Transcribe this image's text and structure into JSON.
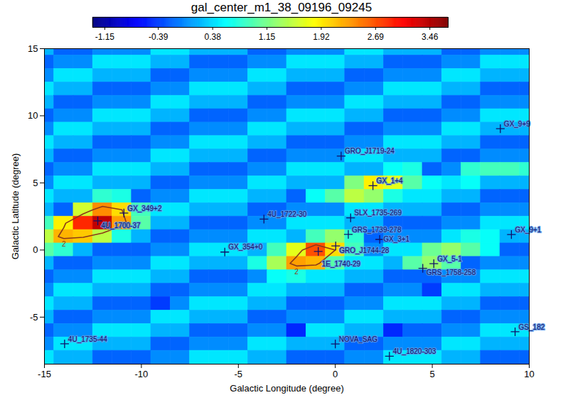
{
  "chart_data": {
    "type": "heatmap",
    "title": "gal_center_m1_38_09196_09245",
    "x_label": "Galactic Longitude (degree)",
    "y_label": "Galactic Latitude (degree)",
    "xlim": [
      -15,
      10
    ],
    "xticks": [
      -15,
      -10,
      -5,
      0,
      5,
      10
    ],
    "ylim": [
      -8.5,
      15
    ],
    "yticks": [
      -5,
      0,
      5,
      10,
      15
    ],
    "colorbar": {
      "lim": [
        -1.32,
        3.72
      ],
      "ticks": [
        -1.15,
        -0.39,
        0.38,
        1.15,
        1.92,
        2.69,
        3.46
      ]
    },
    "contour_levels": [
      2
    ],
    "cells": {
      "lon": [
        -15,
        -14,
        -13,
        -12,
        -11,
        -10,
        -9,
        -8,
        -7,
        -6,
        -5,
        -4,
        -3,
        -2,
        -1,
        0,
        1,
        2,
        3,
        4,
        5,
        6,
        7,
        8,
        9,
        10
      ],
      "lat": [
        15,
        14,
        13,
        12,
        11,
        10,
        9,
        8,
        7,
        6,
        5,
        4,
        3,
        2,
        1,
        0,
        -1,
        -2,
        -3,
        -4,
        -5,
        -6,
        -7,
        -8
      ],
      "values": [
        [
          0.2,
          -0.2,
          -0.2,
          0,
          0,
          0,
          0.45,
          0.45,
          0.2,
          0.2,
          0.2,
          -0.2,
          -0.2,
          0,
          0,
          0,
          0.45,
          0.45,
          0.2,
          0.2,
          0.2,
          -0.2,
          -0.2,
          0,
          0,
          0
        ],
        [
          -0.2,
          0,
          0,
          0.45,
          0.45,
          0.45,
          0.2,
          0.2,
          -0.2,
          -0.2,
          -0.2,
          0,
          0,
          0.45,
          0.45,
          0.45,
          0.2,
          0.2,
          -0.2,
          -0.2,
          -0.2,
          0,
          0,
          0.45,
          0.45,
          0.45
        ],
        [
          0,
          0.45,
          0.45,
          0.2,
          0.2,
          0.2,
          -0.2,
          -0.2,
          0,
          0,
          0,
          0.45,
          0.45,
          0.2,
          0.2,
          0.2,
          -0.2,
          -0.2,
          0,
          0,
          0,
          0.45,
          0.45,
          0.2,
          0.2,
          0.2
        ],
        [
          0.45,
          0.2,
          0.2,
          -0.2,
          -0.2,
          -0.2,
          0,
          0,
          0.45,
          0.45,
          0.45,
          0.2,
          0.2,
          -0.2,
          -0.2,
          -0.2,
          0,
          0,
          0.45,
          0.45,
          0.45,
          0.2,
          0.2,
          -0.2,
          -0.2,
          -0.2
        ],
        [
          0.2,
          -0.2,
          -0.2,
          0,
          0,
          0,
          0.45,
          0.45,
          0.2,
          0.2,
          0.2,
          -0.2,
          -0.2,
          0,
          0,
          0,
          0.45,
          0.45,
          0.2,
          0.2,
          0.2,
          -0.2,
          -0.2,
          0,
          0,
          0
        ],
        [
          -0.2,
          0,
          0,
          0.45,
          0.45,
          0.45,
          0.2,
          0.2,
          -0.2,
          -0.2,
          -0.2,
          0,
          0,
          0.45,
          0.45,
          0.45,
          0.2,
          0.2,
          -0.2,
          -0.2,
          -0.2,
          0,
          0,
          0.45,
          0.45,
          0.45
        ],
        [
          0,
          0.45,
          0.45,
          0.2,
          0.2,
          0.2,
          -0.2,
          -0.2,
          0,
          0,
          0,
          0.45,
          0.45,
          0.2,
          0.2,
          0.2,
          -0.2,
          -0.2,
          0,
          0,
          0,
          0.45,
          0.45,
          0.2,
          0.2,
          0.2
        ],
        [
          0.45,
          0.2,
          0.2,
          -0.2,
          -0.2,
          -0.2,
          0,
          0,
          0.45,
          0.45,
          0.45,
          0.2,
          0.2,
          -0.2,
          -0.2,
          -0.2,
          0,
          0,
          0.45,
          0.45,
          0.45,
          0.2,
          0.2,
          -0.2,
          -0.2,
          -0.2
        ],
        [
          0.2,
          -0.2,
          -0.2,
          0,
          0,
          0,
          0.45,
          0.45,
          0.2,
          0.2,
          0.2,
          -0.2,
          -0.2,
          0,
          0,
          0,
          0.45,
          0.45,
          0.2,
          0.2,
          0.2,
          -0.2,
          -0.2,
          0,
          0,
          0
        ],
        [
          -0.2,
          0,
          0,
          0.45,
          0.45,
          0.45,
          0.2,
          0.2,
          -0.2,
          -0.2,
          -0.2,
          0,
          0,
          0.45,
          0.45,
          0.45,
          0.2,
          0.2,
          0.6,
          0.7,
          -0.2,
          0,
          0.8,
          0.9,
          0.9,
          0.8
        ],
        [
          0,
          0.45,
          0.45,
          0.2,
          0.2,
          0.2,
          -0.2,
          -0.2,
          0,
          0,
          0,
          0.45,
          0.45,
          0.2,
          0.2,
          0.2,
          1.2,
          1.9,
          1.7,
          1.0,
          0.6,
          0.45,
          0.6,
          0.2,
          0.2,
          0.2
        ],
        [
          0.45,
          0.2,
          0.2,
          0.8,
          0.7,
          -0.2,
          0,
          0,
          0.45,
          0.45,
          0.45,
          0.2,
          0.2,
          -0.2,
          0.6,
          1.0,
          1.5,
          1.3,
          0.7,
          0.45,
          0.45,
          0.2,
          0.2,
          -0.2,
          -0.2,
          -0.2
        ],
        [
          0.2,
          -0.2,
          1.6,
          2.4,
          2.0,
          0.9,
          0.45,
          0.45,
          0.2,
          0.2,
          0.2,
          -0.2,
          -0.2,
          0,
          0,
          0,
          0.45,
          0.45,
          0.2,
          0.2,
          0.2,
          -0.2,
          -0.2,
          0,
          0,
          0
        ],
        [
          0.9,
          1.9,
          2.9,
          3.4,
          2.3,
          1.0,
          0.2,
          0.2,
          -0.2,
          -0.2,
          -0.2,
          0,
          0,
          0.45,
          0.45,
          0.45,
          0.2,
          0.2,
          -0.2,
          -0.2,
          -0.2,
          0,
          0,
          0.45,
          0.45,
          0.45
        ],
        [
          1.5,
          2.2,
          2.1,
          1.5,
          0.7,
          0.2,
          -0.2,
          -0.2,
          0,
          0,
          0,
          0.45,
          0.45,
          0.2,
          0.9,
          1.3,
          0.8,
          -0.2,
          0,
          0,
          0,
          0.45,
          0.7,
          0.6,
          0.2,
          0.2
        ],
        [
          1.0,
          0.8,
          0.2,
          -0.2,
          -0.2,
          -0.2,
          0,
          0,
          0.45,
          0.45,
          0.45,
          0.2,
          0.9,
          1.7,
          2.7,
          2.0,
          0.9,
          0,
          0.45,
          0.45,
          1.1,
          1.3,
          1.0,
          0.6,
          -0.2,
          -0.2
        ],
        [
          0.2,
          -0.2,
          -0.2,
          0,
          0,
          0,
          0.45,
          0.45,
          0.2,
          0.2,
          0.2,
          0.7,
          1.4,
          2.3,
          2.2,
          1.0,
          0.45,
          0.45,
          0.2,
          1.0,
          1.3,
          1.0,
          -0.2,
          0,
          0,
          0
        ],
        [
          -0.2,
          0,
          0,
          0.45,
          0.45,
          0.45,
          0.2,
          0.2,
          -0.2,
          -0.2,
          -0.2,
          0,
          0.6,
          0.7,
          0.45,
          0.45,
          0.2,
          0.2,
          -0.2,
          -0.2,
          -0.2,
          0,
          0,
          0.45,
          0.45,
          0.45
        ],
        [
          0,
          0.45,
          0.45,
          0.2,
          0.2,
          0.2,
          -0.2,
          -0.2,
          0,
          0,
          0,
          0.45,
          0.45,
          0.2,
          0.2,
          0.2,
          -0.2,
          -0.2,
          0,
          0,
          -0.4,
          0.45,
          0.45,
          0.2,
          0.2,
          0.2
        ],
        [
          0.45,
          0.2,
          0.2,
          -0.2,
          -0.2,
          -0.2,
          -0.4,
          0,
          0.45,
          0.45,
          0.45,
          0.2,
          0.2,
          -0.2,
          -0.2,
          -0.2,
          0,
          0,
          0.45,
          0.45,
          0.45,
          0.2,
          0.2,
          -0.2,
          -0.2,
          -0.2
        ],
        [
          0.2,
          -0.2,
          -0.2,
          0,
          0,
          0,
          0.45,
          0.45,
          0.2,
          0.2,
          0.2,
          -0.2,
          -0.2,
          0,
          0,
          0,
          0.45,
          0.45,
          0.2,
          0.2,
          0.2,
          -0.2,
          -0.2,
          0,
          0,
          0
        ],
        [
          -0.2,
          0,
          0,
          0.45,
          0.45,
          0.45,
          0.2,
          0.2,
          -0.2,
          -0.2,
          -0.2,
          0,
          0,
          -0.5,
          0.45,
          0.45,
          0.2,
          0.2,
          -0.5,
          -0.2,
          -0.2,
          0,
          0,
          0.45,
          0.45,
          0.45
        ],
        [
          0,
          0.45,
          0.45,
          0.2,
          0.2,
          0.2,
          -0.2,
          -0.2,
          0,
          0,
          0,
          0.45,
          0.45,
          0.2,
          0.2,
          0.2,
          -0.2,
          -0.2,
          0,
          0,
          0,
          0.45,
          0.45,
          0.2,
          0.2,
          0.2
        ],
        [
          0.45,
          0.2,
          0.2,
          -0.2,
          -0.2,
          -0.2,
          0,
          0,
          0.45,
          0.45,
          0.45,
          0.2,
          0.2,
          -0.2,
          -0.2,
          -0.2,
          0,
          0,
          0.45,
          0.45,
          0.45,
          0.2,
          0.2,
          -0.2,
          -0.2,
          -0.2
        ]
      ]
    },
    "marker": "plus",
    "sources": [
      {
        "name": "4U_1700-37",
        "l": -12.25,
        "b": 2.17
      },
      {
        "name": "GX_349+2",
        "l": -10.9,
        "b": 2.75
      },
      {
        "name": "GX_9+9",
        "l": 8.51,
        "b": 9.04
      },
      {
        "name": "GRO_J1719-24",
        "l": 0.3,
        "b": 7.0
      },
      {
        "name": "GX_1+4",
        "l": 1.94,
        "b": 4.79
      },
      {
        "name": "4U_1722-30",
        "l": -3.68,
        "b": 2.3
      },
      {
        "name": "SLX_1735-269",
        "l": 0.79,
        "b": 2.4
      },
      {
        "name": "GRS_1739-278",
        "l": 0.67,
        "b": 1.17
      },
      {
        "name": "GRO_J1744-28",
        "l": 0.02,
        "b": 0.31
      },
      {
        "name": "GX_3+1",
        "l": 2.29,
        "b": 0.79
      },
      {
        "name": "1E_1740-29",
        "l": -0.88,
        "b": -0.1
      },
      {
        "name": "GX_354+0",
        "l": -5.7,
        "b": -0.15
      },
      {
        "name": "GX_9+1",
        "l": 9.08,
        "b": 1.15
      },
      {
        "name": "GX_5-1",
        "l": 5.08,
        "b": -1.02
      },
      {
        "name": "GRS_1758-258",
        "l": 4.51,
        "b": -1.36
      },
      {
        "name": "GS_182",
        "l": 9.27,
        "b": -6.09
      },
      {
        "name": "4U_1735-44",
        "l": -13.96,
        "b": -6.99
      },
      {
        "name": "NOVA_SAG",
        "l": 0.0,
        "b": -7.0
      },
      {
        "name": "4U_1820-303",
        "l": 2.79,
        "b": -7.91
      }
    ]
  }
}
